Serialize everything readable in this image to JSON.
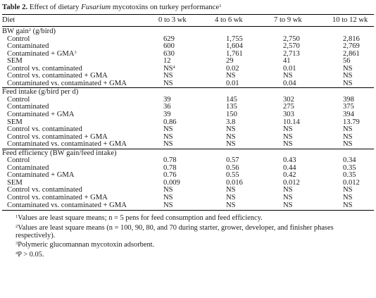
{
  "caption": {
    "label": "Table 2.",
    "text_before": "Effect of dietary",
    "text_italic": "Fusarium",
    "text_after": "mycotoxins on turkey performance",
    "footnote_mark": "1"
  },
  "columns": [
    "Diet",
    "0 to 3 wk",
    "4 to 6 wk",
    "7 to 9 wk",
    "10 to 12 wk"
  ],
  "sections": [
    {
      "title": "BW gain",
      "title_sup": "2",
      "title_unit": " (g/bird)",
      "rows": [
        {
          "label": "Control",
          "label_sup": "",
          "values": [
            "629",
            "1,755",
            "2,750",
            "2,816"
          ]
        },
        {
          "label": "Contaminated",
          "label_sup": "",
          "values": [
            "600",
            "1,604",
            "2,570",
            "2,769"
          ]
        },
        {
          "label": "Contaminated + GMA",
          "label_sup": "3",
          "values": [
            "630",
            "1,761",
            "2,713",
            "2,861"
          ]
        },
        {
          "label": "SEM",
          "label_sup": "",
          "values": [
            "12",
            "29",
            "41",
            "56"
          ]
        },
        {
          "label": "Control vs. contaminated",
          "label_sup": "",
          "values": [
            "NS",
            "0.02",
            "0.01",
            "NS"
          ],
          "first_sup": "4"
        },
        {
          "label": "Control vs. contaminated + GMA",
          "label_sup": "",
          "values": [
            "NS",
            "NS",
            "NS",
            "NS"
          ]
        },
        {
          "label": "Contaminated vs. contaminated + GMA",
          "label_sup": "",
          "values": [
            "NS",
            "0.01",
            "0.04",
            "NS"
          ]
        }
      ]
    },
    {
      "title": "Feed intake (g/bird per d)",
      "title_sup": "",
      "title_unit": "",
      "rows": [
        {
          "label": "Control",
          "label_sup": "",
          "values": [
            "39",
            "145",
            "302",
            "398"
          ]
        },
        {
          "label": "Contaminated",
          "label_sup": "",
          "values": [
            "36",
            "135",
            "275",
            "375"
          ]
        },
        {
          "label": "Contaminated + GMA",
          "label_sup": "",
          "values": [
            "39",
            "150",
            "303",
            "394"
          ]
        },
        {
          "label": "SEM",
          "label_sup": "",
          "values": [
            "0.86",
            "3.8",
            "10.14",
            "13.79"
          ]
        },
        {
          "label": "Control vs. contaminated",
          "label_sup": "",
          "values": [
            "NS",
            "NS",
            "NS",
            "NS"
          ]
        },
        {
          "label": "Control vs. contaminated + GMA",
          "label_sup": "",
          "values": [
            "NS",
            "NS",
            "NS",
            "NS"
          ]
        },
        {
          "label": "Contaminated vs. contaminated + GMA",
          "label_sup": "",
          "values": [
            "NS",
            "NS",
            "NS",
            "NS"
          ]
        }
      ]
    },
    {
      "title": "Feed efficiency (BW gain/feed intake)",
      "title_sup": "",
      "title_unit": "",
      "rows": [
        {
          "label": "Control",
          "label_sup": "",
          "values": [
            "0.78",
            "0.57",
            "0.43",
            "0.34"
          ]
        },
        {
          "label": "Contaminated",
          "label_sup": "",
          "values": [
            "0.78",
            "0.56",
            "0.44",
            "0.35"
          ]
        },
        {
          "label": "Contaminated + GMA",
          "label_sup": "",
          "values": [
            "0.76",
            "0.55",
            "0.42",
            "0.35"
          ]
        },
        {
          "label": "SEM",
          "label_sup": "",
          "values": [
            "0.009",
            "0.016",
            "0.012",
            "0.012"
          ]
        },
        {
          "label": "Control vs. contaminated",
          "label_sup": "",
          "values": [
            "NS",
            "NS",
            "NS",
            "NS"
          ]
        },
        {
          "label": "Control vs. contaminated + GMA",
          "label_sup": "",
          "values": [
            "NS",
            "NS",
            "NS",
            "NS"
          ]
        },
        {
          "label": "Contaminated vs. contaminated + GMA",
          "label_sup": "",
          "values": [
            "NS",
            "NS",
            "NS",
            "NS"
          ]
        }
      ]
    }
  ],
  "footnotes": [
    {
      "mark": "1",
      "text": "Values are least square means; n = 5 pens for feed consumption and feed efficiency."
    },
    {
      "mark": "2",
      "text": "Values are least square means (n = 100, 90, 80, and 70 during starter, grower, developer, and finisher phases respectively)."
    },
    {
      "mark": "3",
      "text": "Polymeric glucomannan mycotoxin adsorbent."
    },
    {
      "mark": "4",
      "text": "P > 0.05."
    }
  ]
}
